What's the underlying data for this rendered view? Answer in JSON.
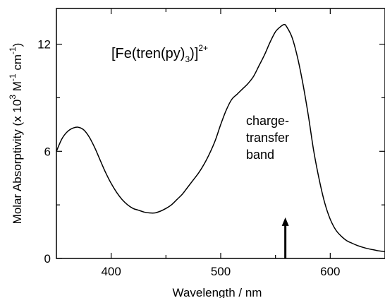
{
  "chart_data": {
    "type": "line",
    "xlabel": "Wavelength / nm",
    "ylabel_parts": {
      "pre": "Molar Absorptivity (x 10",
      "exp1": "3",
      "mid": " M",
      "exp2": "-1",
      "mid2": " cm",
      "exp3": "-1",
      "post": ")"
    },
    "xlim": [
      350,
      650
    ],
    "ylim": [
      0,
      14
    ],
    "x_ticks": [
      400,
      500,
      600
    ],
    "x_tick_labels": [
      "400",
      "500",
      "600"
    ],
    "x_minor_ticks": [
      350,
      450,
      550,
      650
    ],
    "y_ticks": [
      0,
      6,
      12
    ],
    "y_tick_labels": [
      "0",
      "6",
      "12"
    ],
    "y_minor_ticks": [
      3,
      9
    ],
    "grid": false,
    "label": {
      "main": "[Fe(tren(py)",
      "sub": "3",
      "close": ")]",
      "sup": "2+"
    },
    "annotation": {
      "lines": [
        "charge-",
        "transfer",
        "band"
      ],
      "arrow_x": 559,
      "arrow_from_y": 0,
      "arrow_to_y": 2.3
    },
    "series": [
      {
        "x": [
          350,
          355,
          360,
          365,
          370,
          375,
          380,
          385,
          390,
          395,
          400,
          405,
          410,
          415,
          420,
          425,
          430,
          435,
          440,
          445,
          450,
          455,
          460,
          465,
          470,
          475,
          480,
          485,
          490,
          495,
          500,
          505,
          510,
          515,
          520,
          525,
          530,
          535,
          540,
          545,
          550,
          555,
          558,
          560,
          565,
          570,
          575,
          580,
          585,
          590,
          595,
          600,
          605,
          610,
          615,
          620,
          625,
          630,
          635,
          640,
          645,
          650
        ],
        "y": [
          6.0,
          6.7,
          7.1,
          7.3,
          7.35,
          7.2,
          6.8,
          6.2,
          5.5,
          4.8,
          4.2,
          3.7,
          3.3,
          3.0,
          2.8,
          2.7,
          2.6,
          2.55,
          2.55,
          2.65,
          2.8,
          3.0,
          3.3,
          3.6,
          4.0,
          4.4,
          4.8,
          5.3,
          5.9,
          6.6,
          7.5,
          8.3,
          8.9,
          9.2,
          9.5,
          9.8,
          10.2,
          10.8,
          11.4,
          12.1,
          12.7,
          13.0,
          13.1,
          13.0,
          12.4,
          11.3,
          9.8,
          8.0,
          6.0,
          4.4,
          3.1,
          2.2,
          1.6,
          1.25,
          1.0,
          0.85,
          0.72,
          0.62,
          0.54,
          0.48,
          0.42,
          0.38
        ]
      }
    ]
  }
}
